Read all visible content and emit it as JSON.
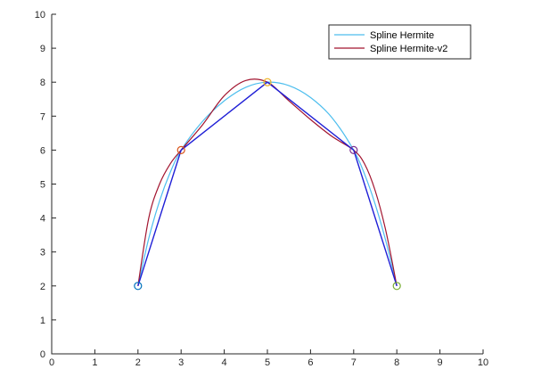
{
  "chart_data": {
    "type": "line",
    "title": "",
    "xlabel": "",
    "ylabel": "",
    "xlim": [
      0,
      10
    ],
    "ylim": [
      0,
      10
    ],
    "xticks": [
      0,
      1,
      2,
      3,
      4,
      5,
      6,
      7,
      8,
      9,
      10
    ],
    "yticks": [
      0,
      1,
      2,
      3,
      4,
      5,
      6,
      7,
      8,
      9,
      10
    ],
    "grid": false,
    "legend_position": "top-right",
    "points": {
      "x": [
        2,
        3,
        5,
        7,
        8
      ],
      "y": [
        2,
        6,
        8,
        6,
        2
      ],
      "marker_colors": [
        "#0072BD",
        "#D95319",
        "#EDB120",
        "#7E2F8E",
        "#77AC30"
      ]
    },
    "polyline": {
      "x": [
        2,
        3,
        5,
        7,
        8
      ],
      "y": [
        2,
        6,
        8,
        6,
        2
      ],
      "color": "#1f1fd6"
    },
    "series": [
      {
        "name": "Spline Hermite",
        "color": "#4DBEEE",
        "x": [
          2,
          2.25,
          2.5,
          2.75,
          3,
          3.5,
          4,
          4.5,
          5,
          5.5,
          6,
          6.5,
          7,
          7.25,
          7.5,
          7.75,
          8
        ],
        "y": [
          2,
          3.4,
          4.5,
          5.35,
          6,
          6.85,
          7.45,
          7.85,
          8,
          7.9,
          7.55,
          6.95,
          6,
          5.3,
          4.4,
          3.3,
          2
        ]
      },
      {
        "name": "Spline Hermite-v2",
        "color": "#A2142F",
        "x": [
          2,
          2.25,
          2.5,
          2.75,
          3,
          3.5,
          4,
          4.5,
          5,
          5.5,
          6,
          6.5,
          7,
          7.25,
          7.5,
          7.75,
          8
        ],
        "y": [
          2,
          4.0,
          5.0,
          5.6,
          6,
          6.75,
          7.6,
          8.05,
          8,
          7.45,
          6.9,
          6.4,
          6,
          5.6,
          4.8,
          3.6,
          2
        ]
      }
    ]
  }
}
